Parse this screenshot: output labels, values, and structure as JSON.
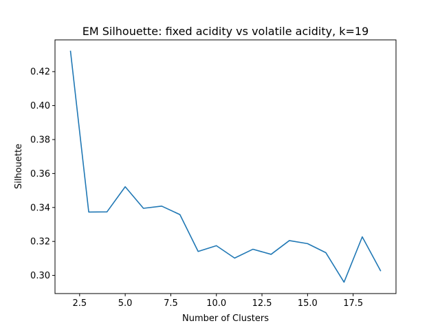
{
  "chart_data": {
    "type": "line",
    "title": "EM Silhouette: fixed acidity vs volatile acidity, k=19",
    "xlabel": "Number of Clusters",
    "ylabel": "Silhouette",
    "xlim": [
      1.15,
      19.85
    ],
    "ylim": [
      0.2893,
      0.4387
    ],
    "xticks": [
      2.5,
      5.0,
      7.5,
      10.0,
      12.5,
      15.0,
      17.5
    ],
    "xtick_labels": [
      "2.5",
      "5.0",
      "7.5",
      "10.0",
      "12.5",
      "15.0",
      "17.5"
    ],
    "yticks": [
      0.3,
      0.32,
      0.34,
      0.36,
      0.38,
      0.4,
      0.42
    ],
    "ytick_labels": [
      "0.30",
      "0.32",
      "0.34",
      "0.36",
      "0.38",
      "0.40",
      "0.42"
    ],
    "grid": false,
    "line_color": "#1f77b4",
    "series": [
      {
        "x": [
          2,
          3,
          4,
          5,
          6,
          7,
          8,
          9,
          10,
          11,
          12,
          13,
          14,
          15,
          16,
          17,
          18,
          19
        ],
        "values": [
          0.432,
          0.3373,
          0.3374,
          0.3522,
          0.3395,
          0.3408,
          0.3358,
          0.3141,
          0.3175,
          0.3102,
          0.3154,
          0.3124,
          0.3205,
          0.3187,
          0.3134,
          0.296,
          0.3227,
          0.3028
        ]
      }
    ]
  }
}
